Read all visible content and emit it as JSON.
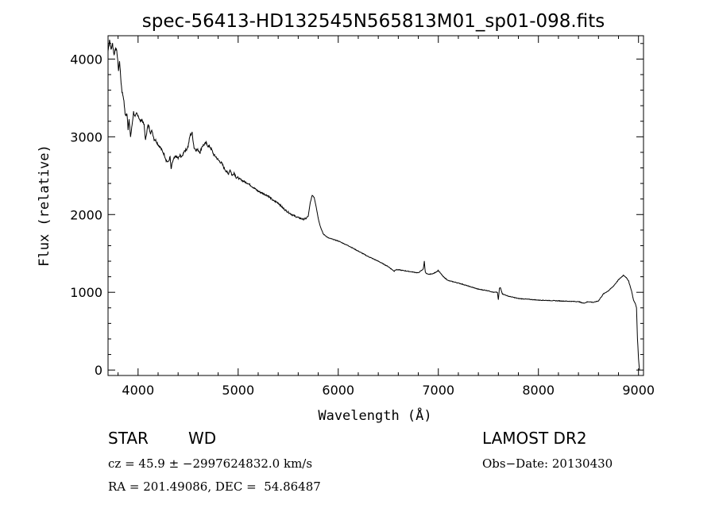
{
  "chart_data": {
    "type": "line",
    "title": "spec-56413-HD132545N565813M01_sp01-098.fits",
    "xlabel": "Wavelength (Å)",
    "ylabel": "Flux (relative)",
    "xlim": [
      3700,
      9050
    ],
    "ylim": [
      -70,
      4300
    ],
    "xticks": [
      4000,
      5000,
      6000,
      7000,
      8000,
      9000
    ],
    "yticks": [
      0,
      1000,
      2000,
      3000,
      4000
    ],
    "grid": false,
    "series": [
      {
        "x": [
          3700,
          3715,
          3730,
          3745,
          3760,
          3775,
          3790,
          3805,
          3815,
          3830,
          3840,
          3855,
          3870,
          3880,
          3890,
          3900,
          3910,
          3925,
          3940,
          3955,
          3970,
          3985,
          4000,
          4020,
          4040,
          4060,
          4075,
          4090,
          4100,
          4110,
          4125,
          4140,
          4160,
          4180,
          4200,
          4220,
          4240,
          4260,
          4280,
          4300,
          4320,
          4330,
          4345,
          4360,
          4380,
          4400,
          4420,
          4440,
          4460,
          4480,
          4500,
          4520,
          4540,
          4560,
          4580,
          4600,
          4620,
          4640,
          4660,
          4680,
          4700,
          4720,
          4740,
          4760,
          4780,
          4800,
          4820,
          4840,
          4860,
          4880,
          4900,
          4920,
          4940,
          4960,
          4980,
          5000,
          5050,
          5100,
          5150,
          5200,
          5250,
          5300,
          5350,
          5400,
          5450,
          5500,
          5550,
          5600,
          5650,
          5680,
          5700,
          5720,
          5740,
          5760,
          5780,
          5800,
          5820,
          5850,
          5900,
          5950,
          6000,
          6100,
          6200,
          6300,
          6400,
          6500,
          6560,
          6570,
          6600,
          6700,
          6800,
          6850,
          6860,
          6870,
          6880,
          6900,
          6950,
          7000,
          7050,
          7100,
          7200,
          7300,
          7400,
          7500,
          7550,
          7590,
          7600,
          7610,
          7620,
          7640,
          7700,
          7800,
          7900,
          8000,
          8100,
          8200,
          8300,
          8400,
          8450,
          8500,
          8550,
          8600,
          8650,
          8700,
          8750,
          8800,
          8850,
          8870,
          8900,
          8930,
          8950,
          8970,
          8980,
          8990,
          9000,
          9010
        ],
        "values": [
          4100,
          4250,
          4120,
          4200,
          4050,
          4150,
          4080,
          3850,
          3980,
          3700,
          3580,
          3500,
          3300,
          3270,
          3300,
          3100,
          3220,
          3000,
          3150,
          3320,
          3250,
          3300,
          3280,
          3200,
          3220,
          3150,
          2950,
          3100,
          3150,
          3120,
          3050,
          3080,
          2970,
          2950,
          2900,
          2870,
          2820,
          2780,
          2700,
          2670,
          2740,
          2580,
          2680,
          2720,
          2750,
          2720,
          2760,
          2740,
          2820,
          2830,
          2880,
          3020,
          3050,
          2860,
          2830,
          2830,
          2800,
          2880,
          2900,
          2920,
          2880,
          2870,
          2820,
          2760,
          2740,
          2700,
          2680,
          2650,
          2600,
          2560,
          2520,
          2580,
          2500,
          2540,
          2480,
          2470,
          2430,
          2400,
          2350,
          2300,
          2270,
          2240,
          2180,
          2150,
          2080,
          2030,
          1990,
          1960,
          1940,
          1950,
          1980,
          2150,
          2250,
          2220,
          2100,
          1950,
          1850,
          1750,
          1700,
          1680,
          1660,
          1600,
          1530,
          1460,
          1400,
          1330,
          1270,
          1290,
          1290,
          1270,
          1250,
          1300,
          1400,
          1260,
          1240,
          1230,
          1240,
          1280,
          1200,
          1150,
          1120,
          1080,
          1040,
          1020,
          1000,
          1000,
          900,
          1050,
          1060,
          980,
          950,
          920,
          910,
          900,
          895,
          890,
          885,
          880,
          860,
          880,
          870,
          890,
          980,
          1020,
          1080,
          1160,
          1220,
          1200,
          1150,
          1020,
          900,
          850,
          800,
          400,
          150,
          0
        ]
      }
    ]
  },
  "info": {
    "object_type": "STAR",
    "subclass": "WD",
    "survey": "LAMOST DR2",
    "redshift": "cz = 45.9 ± −2997624832.0 km/s",
    "obs_date": "Obs−Date: 20130430",
    "coords": "RA = 201.49086, DEC =  54.86487"
  }
}
